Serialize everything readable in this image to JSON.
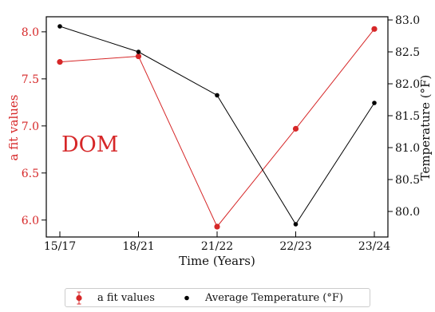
{
  "chart_data": {
    "type": "line",
    "categories": [
      "15/17",
      "18/21",
      "21/22",
      "22/23",
      "23/24"
    ],
    "xlabel": "Time (Years)",
    "annotation": "DOM",
    "colors": {
      "fit": "#d62728",
      "temp": "#000000"
    },
    "y_left": {
      "label": "a fit values",
      "ylim": [
        5.82,
        8.16
      ],
      "ticks": [
        "6.0",
        "6.5",
        "7.0",
        "7.5",
        "8.0"
      ],
      "tick_values": [
        6.0,
        6.5,
        7.0,
        7.5,
        8.0
      ]
    },
    "y_right": {
      "label": "Temperature (°F)",
      "ylim": [
        79.6,
        83.05
      ],
      "ticks": [
        "80.0",
        "80.5",
        "81.0",
        "81.5",
        "82.0",
        "82.5",
        "83.0"
      ],
      "tick_values": [
        80.0,
        80.5,
        81.0,
        81.5,
        82.0,
        82.5,
        83.0
      ]
    },
    "series": [
      {
        "name": "a fit values",
        "axis": "left",
        "color": "#d62728",
        "marker": "errorbar-dot",
        "values": [
          7.68,
          7.74,
          5.93,
          6.97,
          8.03
        ]
      },
      {
        "name": "Average Temperature (°F)",
        "axis": "right",
        "color": "#000000",
        "marker": "dot",
        "values": [
          82.9,
          82.5,
          81.82,
          79.8,
          81.7
        ]
      }
    ],
    "legend": {
      "placement": "bottom-center"
    }
  }
}
